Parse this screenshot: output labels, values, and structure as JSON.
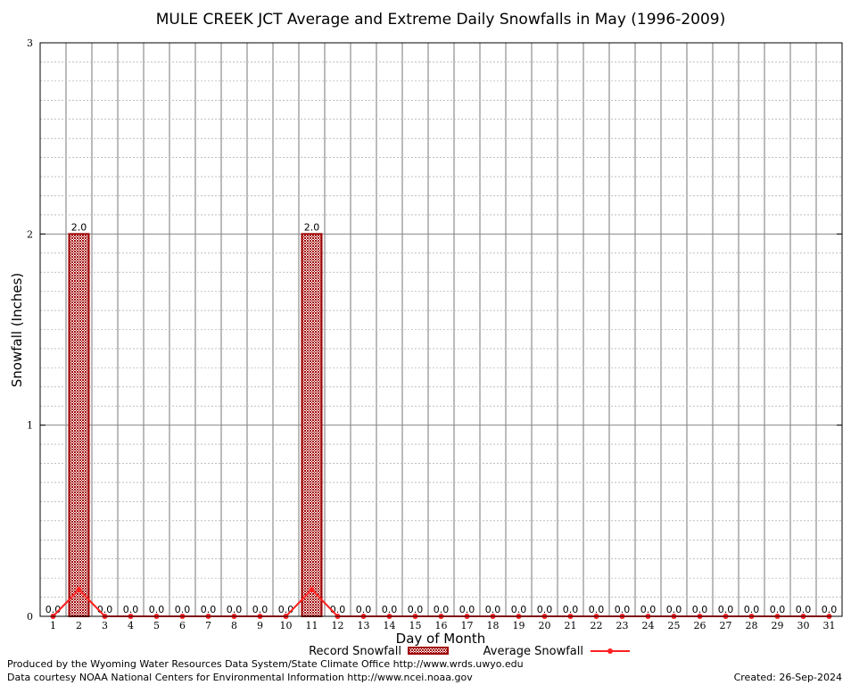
{
  "chart_data": {
    "type": "bar",
    "title": "MULE CREEK JCT Average and Extreme Daily Snowfalls in May (1996-2009)",
    "xlabel": "Day of Month",
    "ylabel": "Snowfall (Inches)",
    "ylim": [
      0,
      3
    ],
    "yticks": [
      "0",
      "1",
      "2",
      "3"
    ],
    "categories": [
      "1",
      "2",
      "3",
      "4",
      "5",
      "6",
      "7",
      "8",
      "9",
      "10",
      "11",
      "12",
      "13",
      "14",
      "15",
      "16",
      "17",
      "18",
      "19",
      "20",
      "21",
      "22",
      "23",
      "24",
      "25",
      "26",
      "27",
      "28",
      "29",
      "30",
      "31"
    ],
    "series": [
      {
        "name": "Record Snowfall",
        "type": "bar",
        "color": "#a00000",
        "values": [
          0,
          2,
          0,
          0,
          0,
          0,
          0,
          0,
          0,
          0,
          2,
          0,
          0,
          0,
          0,
          0,
          0,
          0,
          0,
          0,
          0,
          0,
          0,
          0,
          0,
          0,
          0,
          0,
          0,
          0,
          0
        ],
        "labels": [
          "0.0",
          "2.0",
          "0.0",
          "0.0",
          "0.0",
          "0.0",
          "0.0",
          "0.0",
          "0.0",
          "0.0",
          "2.0",
          "0.0",
          "0.0",
          "0.0",
          "0.0",
          "0.0",
          "0.0",
          "0.0",
          "0.0",
          "0.0",
          "0.0",
          "0.0",
          "0.0",
          "0.0",
          "0.0",
          "0.0",
          "0.0",
          "0.0",
          "0.0",
          "0.0",
          "0.0"
        ]
      },
      {
        "name": "Average Snowfall",
        "type": "line",
        "color": "#ff2020",
        "values": [
          0,
          0.14,
          0,
          0,
          0,
          0,
          0,
          0,
          0,
          0,
          0.14,
          0,
          0,
          0,
          0,
          0,
          0,
          0,
          0,
          0,
          0,
          0,
          0,
          0,
          0,
          0,
          0,
          0,
          0,
          0,
          0
        ]
      }
    ],
    "legend": "bottom",
    "grid": true
  },
  "footer": {
    "produced": "Produced by the Wyoming Water Resources Data System/State Climate Office http://www.wrds.uwyo.edu",
    "courtesy": "Data courtesy NOAA National Centers for Environmental Information http://www.ncei.noaa.gov",
    "created": "Created:  26-Sep-2024"
  }
}
